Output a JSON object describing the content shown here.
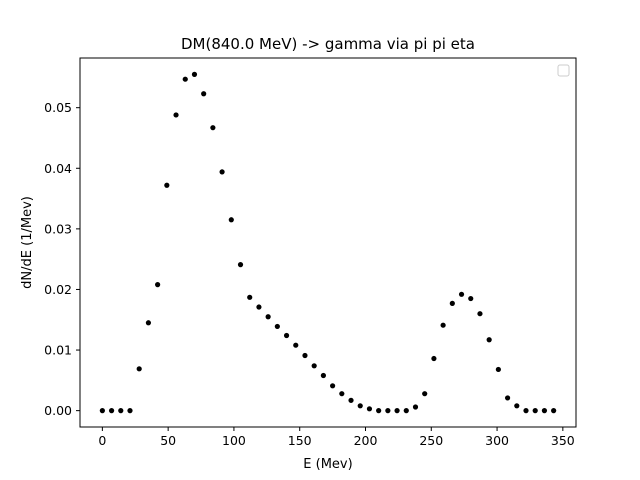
{
  "chart_data": {
    "type": "scatter",
    "title": "DM(840.0 MeV) -> gamma via pi pi eta",
    "xlabel": "E (Mev)",
    "ylabel": "dN/dE (1/Mev)",
    "xlim": [
      -17,
      360
    ],
    "ylim": [
      -0.0027,
      0.0582
    ],
    "x_ticks": [
      0,
      50,
      100,
      150,
      200,
      250,
      300,
      350
    ],
    "y_ticks": [
      0.0,
      0.01,
      0.02,
      0.03,
      0.04,
      0.05
    ],
    "x_tick_labels": [
      "0",
      "50",
      "100",
      "150",
      "200",
      "250",
      "300",
      "350"
    ],
    "y_tick_labels": [
      "0.00",
      "0.01",
      "0.02",
      "0.03",
      "0.04",
      "0.05"
    ],
    "legend": "top-right, empty",
    "grid": false,
    "marker_color": "#000000",
    "series": [
      {
        "x": [
          0,
          7,
          14,
          21,
          28,
          35,
          42,
          49,
          56,
          63,
          70,
          77,
          84,
          91,
          98,
          105,
          112,
          119,
          126,
          133,
          140,
          147,
          154,
          161,
          168,
          175,
          182,
          189,
          196,
          203,
          210,
          217,
          224,
          231,
          238,
          245,
          252,
          259,
          266,
          273,
          280,
          287,
          294,
          301,
          308,
          315,
          322,
          329,
          336,
          343
        ],
        "y": [
          0.0,
          0.0,
          0.0,
          0.0,
          0.0069,
          0.0145,
          0.0208,
          0.0372,
          0.0488,
          0.0547,
          0.0555,
          0.0523,
          0.0467,
          0.0394,
          0.0315,
          0.0241,
          0.0187,
          0.0171,
          0.0155,
          0.0139,
          0.0124,
          0.0108,
          0.0091,
          0.0074,
          0.0058,
          0.0041,
          0.0028,
          0.0017,
          0.0008,
          0.0003,
          0.0,
          0.0,
          0.0,
          0.0,
          0.0006,
          0.0028,
          0.0086,
          0.0141,
          0.0177,
          0.0192,
          0.0185,
          0.016,
          0.0117,
          0.0068,
          0.0021,
          0.0008,
          0.0,
          0.0,
          0.0,
          0.0
        ]
      }
    ]
  }
}
